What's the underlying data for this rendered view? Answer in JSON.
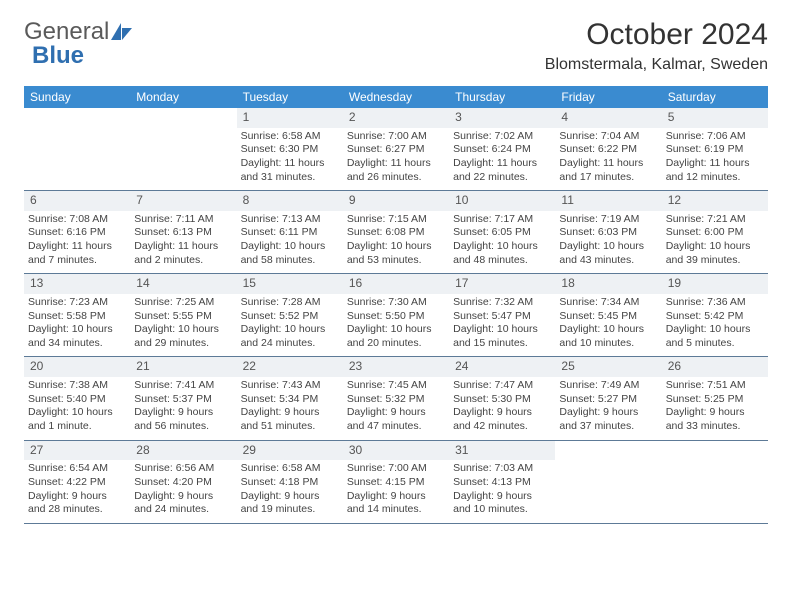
{
  "logo": {
    "text1": "General",
    "text2": "Blue"
  },
  "title": "October 2024",
  "location": "Blomstermala, Kalmar, Sweden",
  "colors": {
    "header_bg": "#3a8bd0",
    "header_text": "#ffffff",
    "daynum_bg": "#eef1f4",
    "row_border": "#5d7a97",
    "logo_gray": "#5a5a5a",
    "logo_blue": "#2f6fb0"
  },
  "font": {
    "body_size_pt": 10.5,
    "title_size_pt": 30,
    "location_size_pt": 16,
    "dow_size_pt": 12
  },
  "daysOfWeek": [
    "Sunday",
    "Monday",
    "Tuesday",
    "Wednesday",
    "Thursday",
    "Friday",
    "Saturday"
  ],
  "weeks": [
    [
      {
        "n": "",
        "sr": "",
        "ss": "",
        "dl": ""
      },
      {
        "n": "",
        "sr": "",
        "ss": "",
        "dl": ""
      },
      {
        "n": "1",
        "sr": "Sunrise: 6:58 AM",
        "ss": "Sunset: 6:30 PM",
        "dl": "Daylight: 11 hours and 31 minutes."
      },
      {
        "n": "2",
        "sr": "Sunrise: 7:00 AM",
        "ss": "Sunset: 6:27 PM",
        "dl": "Daylight: 11 hours and 26 minutes."
      },
      {
        "n": "3",
        "sr": "Sunrise: 7:02 AM",
        "ss": "Sunset: 6:24 PM",
        "dl": "Daylight: 11 hours and 22 minutes."
      },
      {
        "n": "4",
        "sr": "Sunrise: 7:04 AM",
        "ss": "Sunset: 6:22 PM",
        "dl": "Daylight: 11 hours and 17 minutes."
      },
      {
        "n": "5",
        "sr": "Sunrise: 7:06 AM",
        "ss": "Sunset: 6:19 PM",
        "dl": "Daylight: 11 hours and 12 minutes."
      }
    ],
    [
      {
        "n": "6",
        "sr": "Sunrise: 7:08 AM",
        "ss": "Sunset: 6:16 PM",
        "dl": "Daylight: 11 hours and 7 minutes."
      },
      {
        "n": "7",
        "sr": "Sunrise: 7:11 AM",
        "ss": "Sunset: 6:13 PM",
        "dl": "Daylight: 11 hours and 2 minutes."
      },
      {
        "n": "8",
        "sr": "Sunrise: 7:13 AM",
        "ss": "Sunset: 6:11 PM",
        "dl": "Daylight: 10 hours and 58 minutes."
      },
      {
        "n": "9",
        "sr": "Sunrise: 7:15 AM",
        "ss": "Sunset: 6:08 PM",
        "dl": "Daylight: 10 hours and 53 minutes."
      },
      {
        "n": "10",
        "sr": "Sunrise: 7:17 AM",
        "ss": "Sunset: 6:05 PM",
        "dl": "Daylight: 10 hours and 48 minutes."
      },
      {
        "n": "11",
        "sr": "Sunrise: 7:19 AM",
        "ss": "Sunset: 6:03 PM",
        "dl": "Daylight: 10 hours and 43 minutes."
      },
      {
        "n": "12",
        "sr": "Sunrise: 7:21 AM",
        "ss": "Sunset: 6:00 PM",
        "dl": "Daylight: 10 hours and 39 minutes."
      }
    ],
    [
      {
        "n": "13",
        "sr": "Sunrise: 7:23 AM",
        "ss": "Sunset: 5:58 PM",
        "dl": "Daylight: 10 hours and 34 minutes."
      },
      {
        "n": "14",
        "sr": "Sunrise: 7:25 AM",
        "ss": "Sunset: 5:55 PM",
        "dl": "Daylight: 10 hours and 29 minutes."
      },
      {
        "n": "15",
        "sr": "Sunrise: 7:28 AM",
        "ss": "Sunset: 5:52 PM",
        "dl": "Daylight: 10 hours and 24 minutes."
      },
      {
        "n": "16",
        "sr": "Sunrise: 7:30 AM",
        "ss": "Sunset: 5:50 PM",
        "dl": "Daylight: 10 hours and 20 minutes."
      },
      {
        "n": "17",
        "sr": "Sunrise: 7:32 AM",
        "ss": "Sunset: 5:47 PM",
        "dl": "Daylight: 10 hours and 15 minutes."
      },
      {
        "n": "18",
        "sr": "Sunrise: 7:34 AM",
        "ss": "Sunset: 5:45 PM",
        "dl": "Daylight: 10 hours and 10 minutes."
      },
      {
        "n": "19",
        "sr": "Sunrise: 7:36 AM",
        "ss": "Sunset: 5:42 PM",
        "dl": "Daylight: 10 hours and 5 minutes."
      }
    ],
    [
      {
        "n": "20",
        "sr": "Sunrise: 7:38 AM",
        "ss": "Sunset: 5:40 PM",
        "dl": "Daylight: 10 hours and 1 minute."
      },
      {
        "n": "21",
        "sr": "Sunrise: 7:41 AM",
        "ss": "Sunset: 5:37 PM",
        "dl": "Daylight: 9 hours and 56 minutes."
      },
      {
        "n": "22",
        "sr": "Sunrise: 7:43 AM",
        "ss": "Sunset: 5:34 PM",
        "dl": "Daylight: 9 hours and 51 minutes."
      },
      {
        "n": "23",
        "sr": "Sunrise: 7:45 AM",
        "ss": "Sunset: 5:32 PM",
        "dl": "Daylight: 9 hours and 47 minutes."
      },
      {
        "n": "24",
        "sr": "Sunrise: 7:47 AM",
        "ss": "Sunset: 5:30 PM",
        "dl": "Daylight: 9 hours and 42 minutes."
      },
      {
        "n": "25",
        "sr": "Sunrise: 7:49 AM",
        "ss": "Sunset: 5:27 PM",
        "dl": "Daylight: 9 hours and 37 minutes."
      },
      {
        "n": "26",
        "sr": "Sunrise: 7:51 AM",
        "ss": "Sunset: 5:25 PM",
        "dl": "Daylight: 9 hours and 33 minutes."
      }
    ],
    [
      {
        "n": "27",
        "sr": "Sunrise: 6:54 AM",
        "ss": "Sunset: 4:22 PM",
        "dl": "Daylight: 9 hours and 28 minutes."
      },
      {
        "n": "28",
        "sr": "Sunrise: 6:56 AM",
        "ss": "Sunset: 4:20 PM",
        "dl": "Daylight: 9 hours and 24 minutes."
      },
      {
        "n": "29",
        "sr": "Sunrise: 6:58 AM",
        "ss": "Sunset: 4:18 PM",
        "dl": "Daylight: 9 hours and 19 minutes."
      },
      {
        "n": "30",
        "sr": "Sunrise: 7:00 AM",
        "ss": "Sunset: 4:15 PM",
        "dl": "Daylight: 9 hours and 14 minutes."
      },
      {
        "n": "31",
        "sr": "Sunrise: 7:03 AM",
        "ss": "Sunset: 4:13 PM",
        "dl": "Daylight: 9 hours and 10 minutes."
      },
      {
        "n": "",
        "sr": "",
        "ss": "",
        "dl": ""
      },
      {
        "n": "",
        "sr": "",
        "ss": "",
        "dl": ""
      }
    ]
  ]
}
